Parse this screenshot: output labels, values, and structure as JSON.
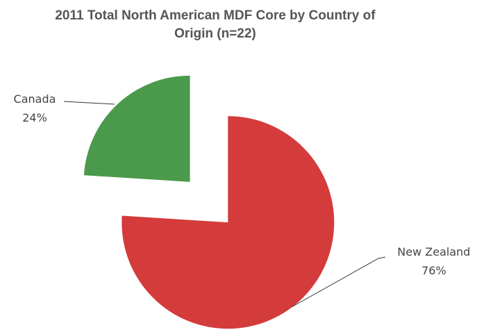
{
  "chart_data": {
    "type": "pie",
    "title": "2011 Total North American MDF Core by Country of Origin (n=22)",
    "categories": [
      "New Zealand",
      "Canada"
    ],
    "values": [
      76,
      24
    ],
    "value_labels": [
      "76%",
      "24%"
    ],
    "colors": [
      "#d43b3b",
      "#4b9a4b"
    ],
    "exploded": true
  }
}
